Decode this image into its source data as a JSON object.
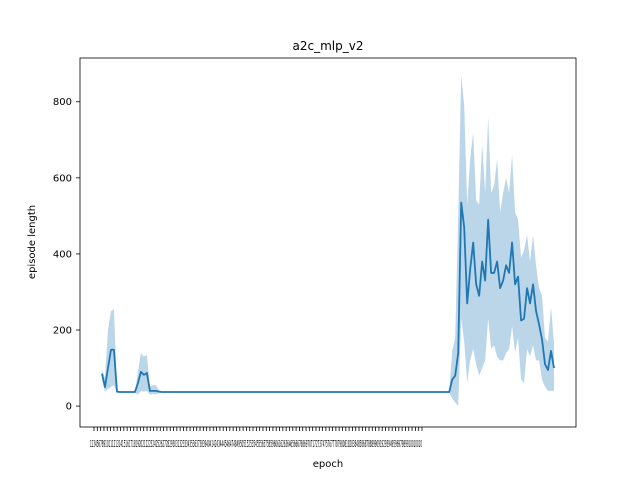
{
  "chart_data": {
    "type": "line",
    "title": "a2c_mlp_v2",
    "xlabel": "epoch",
    "ylabel": "episode length",
    "ylim": [
      -55,
      915
    ],
    "y_ticks": [
      0,
      200,
      400,
      600,
      800
    ],
    "x_tick_text": "12345678910111213141516171819202122232425262728293031323334353637383940414243444546474849505152535455565758596061626364656667686970717273747576777879808182838485868788899091929394959697989910010010",
    "grid": false,
    "legend": "none",
    "colors": {
      "line": "#1f77b4",
      "band": "#1f77b4"
    },
    "series": [
      {
        "values": [
          85,
          50,
          100,
          148,
          148,
          38,
          37,
          37,
          37,
          37,
          37,
          37,
          60,
          90,
          82,
          87,
          40,
          40,
          40,
          38,
          37,
          37,
          37,
          37,
          37,
          37,
          37,
          37,
          37,
          37,
          37,
          37,
          37,
          37,
          37,
          37,
          37,
          37,
          37,
          37,
          37,
          37,
          37,
          37,
          37,
          37,
          37,
          37,
          37,
          37,
          37,
          37,
          37,
          37,
          37,
          37,
          37,
          37,
          37,
          37,
          37,
          37,
          37,
          37,
          37,
          37,
          37,
          37,
          37,
          37,
          37,
          37,
          37,
          37,
          37,
          37,
          37,
          37,
          37,
          37,
          37,
          37,
          37,
          37,
          37,
          37,
          37,
          37,
          37,
          37,
          37,
          37,
          37,
          37,
          37,
          37,
          37,
          37,
          37,
          37,
          37,
          37,
          37,
          37,
          37,
          37,
          37,
          37,
          37,
          37,
          37,
          37,
          37,
          37,
          37,
          37,
          37,
          70,
          80,
          140,
          535,
          470,
          270,
          360,
          430,
          320,
          290,
          380,
          330,
          490,
          350,
          350,
          380,
          310,
          330,
          370,
          350,
          430,
          320,
          340,
          225,
          230,
          310,
          270,
          320,
          250,
          215,
          175,
          110,
          95,
          145,
          100
        ],
        "upper": [
          95,
          75,
          200,
          250,
          255,
          40,
          38,
          38,
          38,
          38,
          38,
          38,
          90,
          140,
          130,
          135,
          52,
          55,
          55,
          42,
          38,
          38,
          38,
          38,
          38,
          38,
          38,
          38,
          38,
          38,
          38,
          38,
          38,
          38,
          38,
          38,
          38,
          38,
          38,
          38,
          38,
          38,
          38,
          38,
          38,
          38,
          38,
          38,
          38,
          38,
          38,
          38,
          38,
          38,
          38,
          38,
          38,
          38,
          38,
          38,
          38,
          38,
          38,
          38,
          38,
          38,
          38,
          38,
          38,
          38,
          38,
          38,
          38,
          38,
          38,
          38,
          38,
          38,
          38,
          38,
          38,
          38,
          38,
          38,
          38,
          38,
          38,
          38,
          38,
          38,
          38,
          38,
          38,
          38,
          38,
          38,
          38,
          38,
          38,
          38,
          38,
          38,
          38,
          38,
          38,
          38,
          38,
          38,
          38,
          38,
          38,
          38,
          38,
          38,
          38,
          38,
          38,
          145,
          180,
          500,
          870,
          790,
          530,
          650,
          720,
          540,
          530,
          690,
          560,
          760,
          560,
          580,
          650,
          510,
          560,
          600,
          560,
          660,
          510,
          490,
          390,
          410,
          450,
          380,
          450,
          370,
          310,
          290,
          180,
          170,
          260,
          165
        ],
        "lower": [
          70,
          38,
          45,
          50,
          55,
          35,
          35,
          35,
          35,
          35,
          35,
          35,
          30,
          40,
          38,
          40,
          30,
          32,
          30,
          34,
          35,
          35,
          35,
          35,
          35,
          35,
          35,
          35,
          35,
          35,
          35,
          35,
          35,
          35,
          35,
          35,
          35,
          35,
          35,
          35,
          35,
          35,
          35,
          35,
          35,
          35,
          35,
          35,
          35,
          35,
          35,
          35,
          35,
          35,
          35,
          35,
          35,
          35,
          35,
          35,
          35,
          35,
          35,
          35,
          35,
          35,
          35,
          35,
          35,
          35,
          35,
          35,
          35,
          35,
          35,
          35,
          35,
          35,
          35,
          35,
          35,
          35,
          35,
          35,
          35,
          35,
          35,
          35,
          35,
          35,
          35,
          35,
          35,
          35,
          35,
          35,
          35,
          35,
          35,
          35,
          35,
          35,
          35,
          35,
          35,
          35,
          35,
          35,
          35,
          35,
          35,
          35,
          35,
          35,
          35,
          35,
          35,
          20,
          10,
          0,
          230,
          170,
          60,
          120,
          150,
          110,
          80,
          100,
          120,
          230,
          150,
          160,
          130,
          120,
          120,
          140,
          150,
          210,
          140,
          180,
          70,
          60,
          150,
          130,
          160,
          120,
          120,
          70,
          50,
          40,
          40,
          40
        ]
      }
    ]
  }
}
